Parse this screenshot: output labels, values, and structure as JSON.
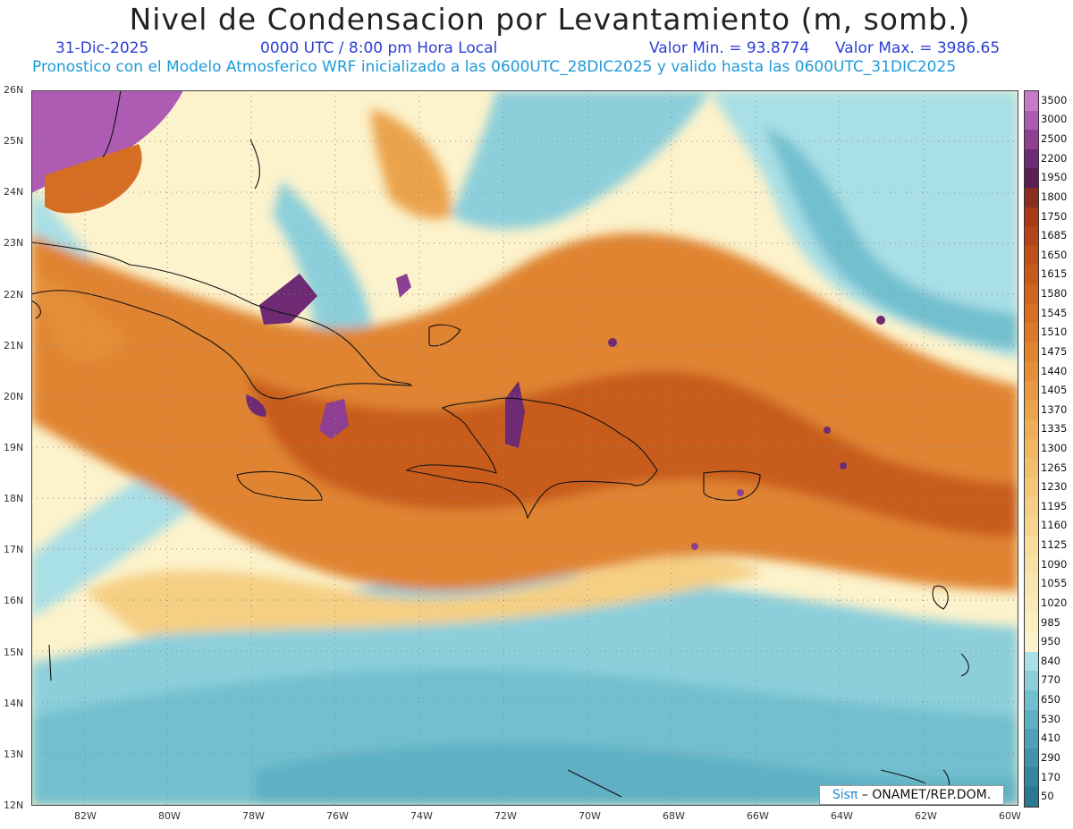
{
  "header": {
    "title": "Nivel de Condensacion por Levantamiento (m, somb.)",
    "date": "31-Dic-2025",
    "time": "0000 UTC / 8:00 pm Hora Local",
    "vmin": "Valor Min. = 93.8774",
    "vmax": "Valor Max. = 3986.65",
    "subtitle": "Pronostico con el Modelo Atmosferico WRF inicializado a las 0600UTC_28DIC2025 y valido hasta las  0600UTC_31DIC2025"
  },
  "axes": {
    "lat_labels": [
      "26N",
      "25N",
      "24N",
      "23N",
      "22N",
      "21N",
      "20N",
      "19N",
      "18N",
      "17N",
      "16N",
      "15N",
      "14N",
      "13N",
      "12N"
    ],
    "lon_labels": [
      "82W",
      "80W",
      "78W",
      "76W",
      "74W",
      "72W",
      "70W",
      "68W",
      "66W",
      "64W",
      "62W",
      "60W"
    ]
  },
  "colorbar": {
    "labels": [
      "3500",
      "3000",
      "2500",
      "2200",
      "1950",
      "1800",
      "1750",
      "1685",
      "1650",
      "1615",
      "1580",
      "1545",
      "1510",
      "1475",
      "1440",
      "1405",
      "1370",
      "1335",
      "1300",
      "1265",
      "1230",
      "1195",
      "1160",
      "1125",
      "1090",
      "1055",
      "1020",
      "985",
      "950",
      "840",
      "770",
      "650",
      "530",
      "410",
      "290",
      "170",
      "50"
    ],
    "colors": [
      "#c77ac9",
      "#ae5bb4",
      "#8f3f92",
      "#6e2a72",
      "#5a1f55",
      "#8a2e1f",
      "#a83a18",
      "#b4451a",
      "#bf5019",
      "#c85b1c",
      "#cf651f",
      "#d66f24",
      "#dc7a2a",
      "#e08430",
      "#e48e38",
      "#e79841",
      "#eba34b",
      "#eead56",
      "#f0b761",
      "#f2c06c",
      "#f4c877",
      "#f5cf83",
      "#f6d68f",
      "#f7dc9a",
      "#f8e1a5",
      "#f9e6af",
      "#faeab8",
      "#fbeec1",
      "#fcf2cb",
      "#a9dfe6",
      "#8ccfdb",
      "#72bfcf",
      "#5eb0c4",
      "#4ea2b8",
      "#4193ab",
      "#33849e",
      "#2a7891"
    ]
  },
  "credit": {
    "brand": "Sisπ",
    "text": "– ONAMET/REP.DOM."
  },
  "legend_tick_range": "50–3500 m"
}
